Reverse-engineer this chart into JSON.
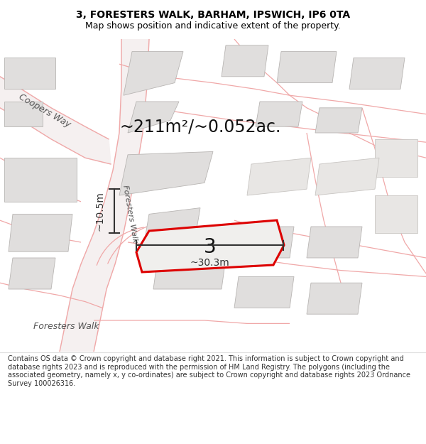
{
  "title": "3, FORESTERS WALK, BARHAM, IPSWICH, IP6 0TA",
  "subtitle": "Map shows position and indicative extent of the property.",
  "footer": "Contains OS data © Crown copyright and database right 2021. This information is subject to Crown copyright and database rights 2023 and is reproduced with the permission of HM Land Registry. The polygons (including the associated geometry, namely x, y co-ordinates) are subject to Crown copyright and database rights 2023 Ordnance Survey 100026316.",
  "area_label": "~211m²/~0.052ac.",
  "plot_number": "3",
  "dim_width": "~30.3m",
  "dim_height": "~10.5m",
  "map_bg": "#f9f8f7",
  "title_bg": "#ffffff",
  "footer_bg": "#ffffff",
  "road_color": "#f0a8a8",
  "road_outline_color": "#c8a0a0",
  "building_fill": "#e0dedd",
  "building_edge": "#b8b5b3",
  "plot_fill": "#f0efed",
  "plot_edge": "#dd0000",
  "dim_color": "#333333",
  "label_color": "#555555",
  "title_fontsize": 10,
  "subtitle_fontsize": 9,
  "area_fontsize": 17,
  "plot_label_fontsize": 20,
  "dim_fontsize": 10,
  "road_label_fontsize": 9,
  "footer_fontsize": 7
}
